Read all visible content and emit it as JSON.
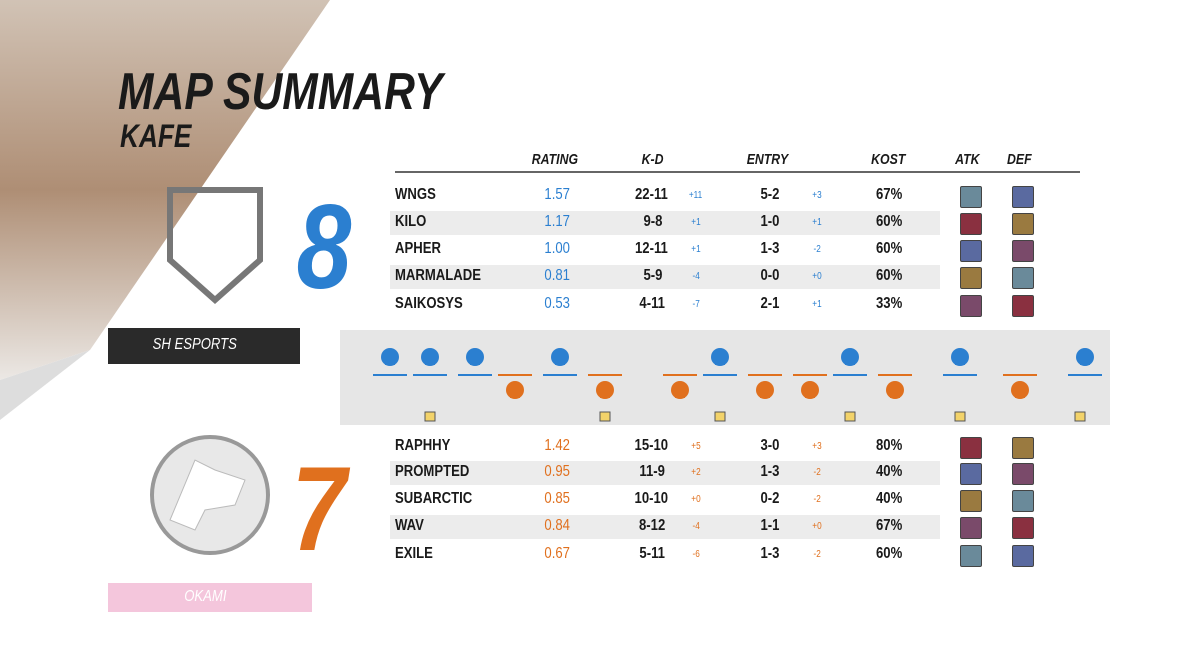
{
  "header": {
    "title": "MAP SUMMARY",
    "map": "KAFE"
  },
  "columns": [
    "RATING",
    "K-D",
    "ENTRY",
    "KOST",
    "ATK",
    "DEF"
  ],
  "teams": [
    {
      "name": "SH ESPORTS",
      "score": "8",
      "color": "#2b7fd0",
      "players": [
        {
          "name": "WNGS",
          "rating": "1.57",
          "kd": "22-11",
          "kd_diff": "+11",
          "entry": "5-2",
          "entry_diff": "+3",
          "kost": "67%"
        },
        {
          "name": "KILO",
          "rating": "1.17",
          "kd": "9-8",
          "kd_diff": "+1",
          "entry": "1-0",
          "entry_diff": "+1",
          "kost": "60%"
        },
        {
          "name": "APHER",
          "rating": "1.00",
          "kd": "12-11",
          "kd_diff": "+1",
          "entry": "1-3",
          "entry_diff": "-2",
          "kost": "60%"
        },
        {
          "name": "MARMALADE",
          "rating": "0.81",
          "kd": "5-9",
          "kd_diff": "-4",
          "entry": "0-0",
          "entry_diff": "+0",
          "kost": "60%"
        },
        {
          "name": "SAIKOSYS",
          "rating": "0.53",
          "kd": "4-11",
          "kd_diff": "-7",
          "entry": "2-1",
          "entry_diff": "+1",
          "kost": "33%"
        }
      ]
    },
    {
      "name": "OKAMI",
      "score": "7",
      "color": "#e0701e",
      "players": [
        {
          "name": "RAPHHY",
          "rating": "1.42",
          "kd": "15-10",
          "kd_diff": "+5",
          "entry": "3-0",
          "entry_diff": "+3",
          "kost": "80%"
        },
        {
          "name": "PROMPTED",
          "rating": "0.95",
          "kd": "11-9",
          "kd_diff": "+2",
          "entry": "1-3",
          "entry_diff": "-2",
          "kost": "40%"
        },
        {
          "name": "SUBARCTIC",
          "rating": "0.85",
          "kd": "10-10",
          "kd_diff": "+0",
          "entry": "0-2",
          "entry_diff": "-2",
          "kost": "40%"
        },
        {
          "name": "WAV",
          "rating": "0.84",
          "kd": "8-12",
          "kd_diff": "-4",
          "entry": "1-1",
          "entry_diff": "+0",
          "kost": "67%"
        },
        {
          "name": "EXILE",
          "rating": "0.67",
          "kd": "5-11",
          "kd_diff": "-6",
          "entry": "1-3",
          "entry_diff": "-2",
          "kost": "60%"
        }
      ]
    }
  ]
}
